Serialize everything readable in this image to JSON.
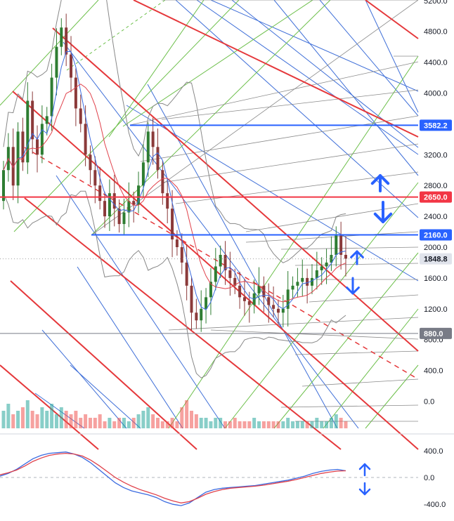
{
  "chart_data": [
    {
      "type": "candlestick",
      "panel": "price",
      "ylim": [
        -450,
        5300
      ],
      "y_ticks": [
        5200,
        4800,
        4400,
        4000,
        3200,
        2800,
        2400,
        2000,
        1600,
        1200,
        800,
        400,
        0
      ],
      "y_tick_labels": [
        "5200.0",
        "4800.0",
        "4400.0",
        "4000.0",
        "3200.0",
        "2800.0",
        "2400.0",
        "2000.0",
        "1600.0",
        "1200.0",
        "800.0",
        "400.0",
        "0.0"
      ],
      "price_levels": [
        {
          "label": "3582.2",
          "value": 3582.2,
          "style": "blue-line"
        },
        {
          "label": "2650.0",
          "value": 2650.0,
          "style": "red-line"
        },
        {
          "label": "2160.0",
          "value": 2160.0,
          "style": "blue-line"
        },
        {
          "label": "1848.8",
          "value": 1848.8,
          "style": "current-price"
        },
        {
          "label": "880.0",
          "value": 880.0,
          "style": "gray-line"
        }
      ],
      "candles_close_approx": [
        3000,
        3300,
        2800,
        3500,
        3100,
        3900,
        3400,
        3200,
        3600,
        3700,
        4200,
        4600,
        4850,
        4500,
        4200,
        3800,
        3600,
        3200,
        3000,
        2800,
        2600,
        2400,
        2700,
        2500,
        2300,
        2450,
        2600,
        2550,
        2800,
        3100,
        3500,
        3300,
        3000,
        2700,
        2500,
        2100,
        2000,
        1800,
        1500,
        1150,
        1050,
        1200,
        1350,
        1550,
        1750,
        1900,
        1700,
        1600,
        1500,
        1350,
        1300,
        1250,
        1400,
        1500,
        1350,
        1250,
        1200,
        1150,
        1200,
        1450,
        1500,
        1550,
        1600,
        1500,
        1600,
        1700,
        1750,
        1800,
        1900,
        2150,
        1900,
        1850
      ],
      "volume_relative_approx": [
        0.5,
        0.7,
        0.4,
        0.5,
        0.6,
        0.8,
        0.5,
        0.4,
        0.6,
        0.5,
        0.7,
        0.4,
        0.6,
        0.5,
        0.4,
        0.5,
        0.3,
        0.4,
        0.3,
        0.3,
        0.4,
        0.2,
        0.3,
        0.2,
        0.3,
        0.3,
        0.2,
        0.3,
        0.4,
        0.5,
        0.6,
        0.4,
        0.3,
        0.2,
        0.2,
        0.3,
        0.2,
        0.6,
        0.8,
        0.5,
        0.4,
        0.3,
        0.3,
        0.2,
        0.3,
        0.3,
        0.2,
        0.2,
        0.3,
        0.2,
        0.2,
        0.2,
        0.3,
        0.2,
        0.2,
        0.2,
        0.2,
        0.2,
        0.2,
        0.3,
        0.2,
        0.2,
        0.2,
        0.2,
        0.2,
        0.3,
        0.2,
        0.2,
        0.3,
        0.4,
        0.3,
        0.2
      ],
      "annotations": [
        "up-arrow",
        "down-arrow",
        "up-arrow",
        "down-arrow"
      ]
    },
    {
      "type": "line",
      "panel": "oscillator",
      "ylim": [
        -480,
        520
      ],
      "y_ticks": [
        400,
        0,
        -400
      ],
      "y_tick_labels": [
        "400.0",
        "0.0",
        "-400.0"
      ],
      "series": [
        {
          "values": [
            20,
            60,
            120,
            200,
            280,
            330,
            360,
            370,
            380,
            350,
            300,
            220,
            120,
            20,
            -80,
            -150,
            -200,
            -230,
            -260,
            -300,
            -360,
            -400,
            -420,
            -380,
            -300,
            -220,
            -180,
            -160,
            -150,
            -140,
            -130,
            -120,
            -100,
            -80,
            -60,
            -40,
            -10,
            20,
            60,
            90,
            110,
            120,
            100
          ]
        },
        {
          "values": [
            40,
            70,
            110,
            170,
            240,
            290,
            330,
            350,
            360,
            350,
            320,
            260,
            180,
            90,
            0,
            -70,
            -130,
            -180,
            -220,
            -260,
            -310,
            -350,
            -380,
            -360,
            -310,
            -250,
            -210,
            -180,
            -160,
            -150,
            -140,
            -130,
            -115,
            -95,
            -75,
            -55,
            -30,
            0,
            30,
            60,
            80,
            95,
            100
          ]
        }
      ],
      "annotations": [
        "up-arrow",
        "down-arrow"
      ]
    }
  ],
  "colors": {
    "candle_up": "#26a69a",
    "candle_down": "#ef5350",
    "candle_body_up": "#2e7d32",
    "candle_body_down": "#8b3a3a",
    "red_channel": "#e5383b",
    "blue_fan": "#3f6fd8",
    "green_fan": "#6cbf4a",
    "gray_fan": "#8a8a8a",
    "bollinger": "#888888",
    "ma_blue": "#3b6be0",
    "ma_red": "#e0414b",
    "badge_blue": "#2962ff",
    "badge_red": "#f23645",
    "badge_gray": "#787b86",
    "arrow_blue": "#2962ff"
  }
}
